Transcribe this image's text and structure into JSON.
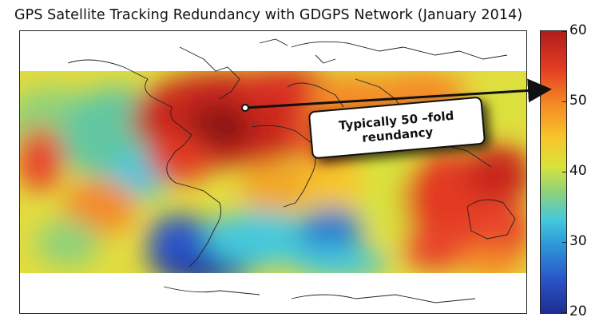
{
  "title": "GPS Satellite Tracking Redundancy with GDGPS Network (January 2014)",
  "colorbar": {
    "min": 20,
    "max": 60,
    "ticks": [
      "60",
      "50",
      "40",
      "30",
      "20"
    ],
    "colormap": [
      "#1f2d93",
      "#2a55c8",
      "#2f9bd9",
      "#45c8dc",
      "#8fd27a",
      "#d8e23c",
      "#f8c62a",
      "#f58a25",
      "#e23b22",
      "#b01d1c"
    ]
  },
  "annotation": {
    "line1": "Typically 50 –fold",
    "line2": "reundancy",
    "points_to_value": 52
  },
  "colors": {
    "low": "#1f2d93",
    "mid": "#d8e23c",
    "high": "#b01d1c",
    "coastline": "#222222"
  }
}
